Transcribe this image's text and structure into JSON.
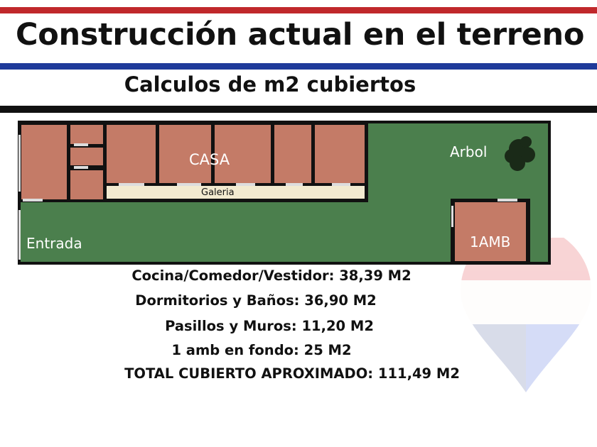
{
  "header": {
    "title": "Construcción actual en el terreno",
    "subtitle": "Calculos de m2 cubiertos"
  },
  "colors": {
    "red": "#c0282b",
    "blue": "#1f3a9a",
    "black": "#111111",
    "grass": "#4b7f4d",
    "room": "#c47b67",
    "galeria": "#f2ead0"
  },
  "plan": {
    "labels": {
      "casa": "CASA",
      "galeria": "Galeria",
      "arbol": "Arbol",
      "entrada": "Entrada",
      "amb": "1AMB"
    }
  },
  "summary": [
    "Cocina/Comedor/Vestidor: 38,39 M2",
    "Dormitorios y Baños: 36,90 M2",
    "Pasillos y Muros: 11,20 M2",
    "1 amb en fondo: 25 M2",
    "TOTAL CUBIERTO APROXIMADO: 111,49 M2"
  ]
}
